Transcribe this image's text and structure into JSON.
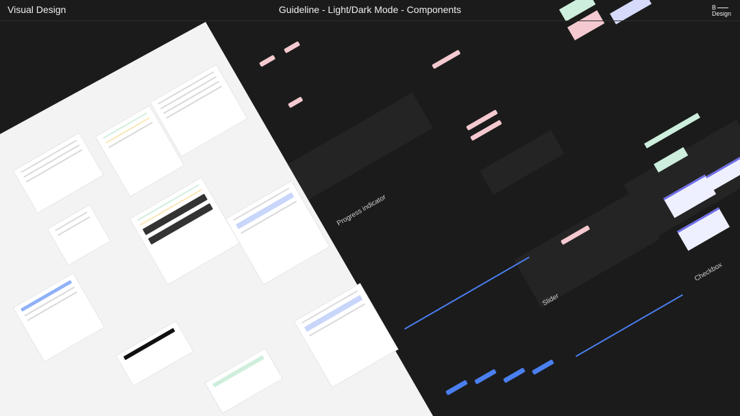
{
  "header": {
    "brand": "Visual Design",
    "title": "Guideline - Light/Dark Mode - Components",
    "logo_text": [
      "B",
      "Design"
    ]
  },
  "sections": {
    "progress": "Progress indicator",
    "slider": "Slider",
    "checkbox": "Checkbox"
  },
  "colors": {
    "background": "#1b1b1b",
    "light_canvas": "#f3f3f3",
    "accent_blue": "#4a7ff0",
    "pink": "#f4c9cf",
    "green": "#cdeedd",
    "lavender": "#d7dbfb"
  }
}
